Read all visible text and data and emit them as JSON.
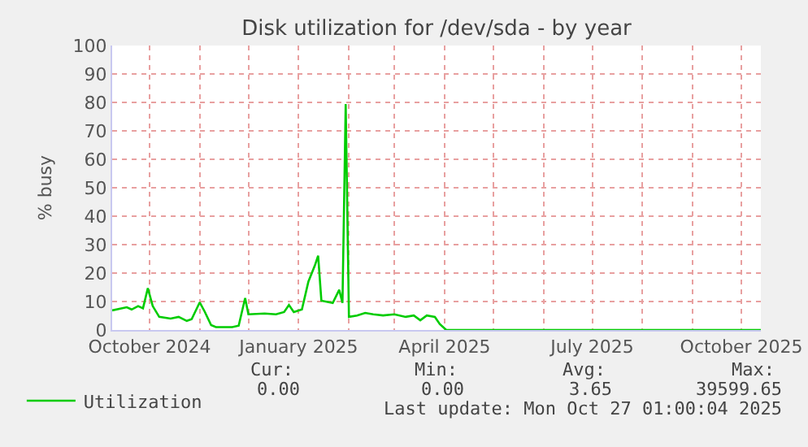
{
  "chart_data": {
    "type": "line",
    "title": "Disk utilization for /dev/sda - by year",
    "ylabel": "% busy",
    "x": [
      "2024-09-08",
      "2024-09-17",
      "2024-09-20",
      "2024-09-24",
      "2024-09-27",
      "2024-09-30",
      "2024-10-03",
      "2024-10-07",
      "2024-10-14",
      "2024-10-19",
      "2024-10-24",
      "2024-10-27",
      "2024-11-01",
      "2024-11-04",
      "2024-11-08",
      "2024-11-11",
      "2024-11-21",
      "2024-11-25",
      "2024-11-29",
      "2024-12-01",
      "2024-12-11",
      "2024-12-18",
      "2024-12-23",
      "2024-12-26",
      "2024-12-29",
      "2025-01-03",
      "2025-01-07",
      "2025-01-11",
      "2025-01-13",
      "2025-01-15",
      "2025-01-22",
      "2025-01-26",
      "2025-01-28",
      "2025-01-30",
      "2025-02-01",
      "2025-02-06",
      "2025-02-11",
      "2025-02-16",
      "2025-02-22",
      "2025-03-01",
      "2025-03-08",
      "2025-03-13",
      "2025-03-17",
      "2025-03-21",
      "2025-03-26",
      "2025-03-29",
      "2025-04-02",
      "2025-10-13"
    ],
    "series": [
      {
        "name": "Utilization",
        "color": "#00cc00",
        "values": [
          6.9,
          8,
          7.2,
          8.4,
          7.6,
          14.7,
          8.4,
          4.6,
          4,
          4.6,
          3.2,
          3.8,
          9.7,
          6.5,
          1.7,
          1,
          1,
          1.5,
          11.2,
          5.5,
          5.8,
          5.5,
          6.3,
          8.8,
          6.3,
          7.2,
          17,
          22.7,
          26.1,
          10.3,
          9.5,
          14.1,
          9.5,
          79.4,
          4.6,
          5.1,
          6,
          5.5,
          5.1,
          5.5,
          4.6,
          5.1,
          3.4,
          5.1,
          4.6,
          2.1,
          0,
          0
        ]
      }
    ],
    "xlim": [
      "2024-09-08",
      "2025-10-13"
    ],
    "xticks": [
      {
        "value": "2024-10-01",
        "label": "October 2024"
      },
      {
        "value": "2024-11-01",
        "label": null
      },
      {
        "value": "2024-12-01",
        "label": null
      },
      {
        "value": "2025-01-01",
        "label": "January 2025"
      },
      {
        "value": "2025-02-01",
        "label": null
      },
      {
        "value": "2025-03-01",
        "label": null
      },
      {
        "value": "2025-04-01",
        "label": "April 2025"
      },
      {
        "value": "2025-05-01",
        "label": null
      },
      {
        "value": "2025-06-01",
        "label": null
      },
      {
        "value": "2025-07-01",
        "label": "July 2025"
      },
      {
        "value": "2025-08-01",
        "label": null
      },
      {
        "value": "2025-09-01",
        "label": null
      },
      {
        "value": "2025-10-01",
        "label": "October 2025"
      }
    ],
    "ylim": [
      0,
      100
    ],
    "yticks": [
      0,
      10,
      20,
      30,
      40,
      50,
      60,
      70,
      80,
      90,
      100
    ],
    "grid": true,
    "legend": "bottom left",
    "marker": "none",
    "line_style": "solid",
    "annotations": [
      "Cur:",
      "Min:",
      "Avg:",
      "Max:",
      "0.00",
      "0.00",
      "3.65",
      "39599.65",
      "Last update: Mon Oct 27 01:00:04 2025"
    ]
  }
}
